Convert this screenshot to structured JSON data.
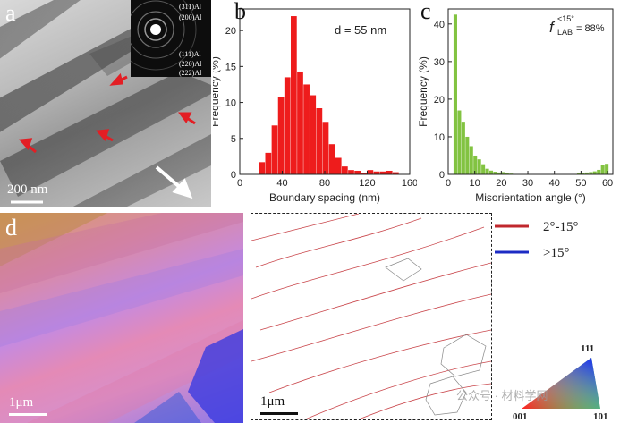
{
  "panel_labels": {
    "a": "a",
    "b": "b",
    "c": "c",
    "d": "d"
  },
  "tem": {
    "scale_bar": "200 nm",
    "saed_labels": [
      "(311)Al",
      "(200)Al",
      "(111)Al",
      "(220)Al",
      "(222)Al"
    ]
  },
  "chart_data": [
    {
      "type": "bar",
      "panel": "b",
      "xlabel": "Boundary spacing (nm)",
      "ylabel": "Frequency (%)",
      "annotation": "d = 55 nm",
      "xlim": [
        0,
        160
      ],
      "ylim": [
        0,
        23
      ],
      "xticks": [
        0,
        40,
        80,
        120,
        160
      ],
      "yticks": [
        0,
        5,
        10,
        15,
        20
      ],
      "bin_width": 6,
      "x": [
        21,
        27,
        33,
        39,
        45,
        51,
        57,
        63,
        69,
        75,
        81,
        87,
        93,
        99,
        105,
        111,
        117,
        123,
        129,
        135,
        141,
        147
      ],
      "values": [
        1.7,
        3.0,
        6.8,
        10.8,
        13.5,
        22.0,
        14.3,
        12.5,
        11.0,
        9.2,
        7.3,
        4.2,
        2.3,
        1.1,
        0.6,
        0.5,
        0.2,
        0.6,
        0.4,
        0.4,
        0.5,
        0.3
      ],
      "color": "#ee1c1c"
    },
    {
      "type": "bar",
      "panel": "c",
      "xlabel": "Misorientation angle (°)",
      "ylabel": "Frequency (%)",
      "annotation": {
        "symbol": "f",
        "superscript": "<15°",
        "subscript": "LAB",
        "value": " = 88%"
      },
      "xlim": [
        0,
        62
      ],
      "ylim": [
        0,
        44
      ],
      "xticks": [
        0,
        10,
        20,
        30,
        40,
        50,
        60
      ],
      "yticks": [
        0,
        10,
        20,
        30,
        40
      ],
      "bin_width": 1.5,
      "x": [
        2.75,
        4.25,
        5.75,
        7.25,
        8.75,
        10.25,
        11.75,
        13.25,
        14.75,
        16.25,
        17.75,
        19.25,
        20.75,
        22.25,
        23.75,
        49.25,
        50.75,
        52.25,
        53.75,
        55.25,
        56.75,
        58.25,
        59.75
      ],
      "values": [
        42.5,
        17.0,
        14.0,
        10.0,
        7.5,
        5.0,
        4.0,
        2.7,
        1.5,
        1.0,
        0.7,
        0.5,
        0.6,
        0.4,
        0.2,
        0.3,
        0.4,
        0.5,
        0.6,
        0.8,
        1.2,
        2.5,
        2.8
      ],
      "color": "#82c341"
    }
  ],
  "ebsd": {
    "scale_bar": "1μm"
  },
  "boundary_map": {
    "scale_bar": "1μm"
  },
  "legend": {
    "items": [
      {
        "label": "2°-15°",
        "color": "#c0272d"
      },
      {
        "label": ">15°",
        "color": "#1c2bc4"
      }
    ]
  },
  "ipf": {
    "labels": [
      "111",
      "001",
      "101"
    ]
  },
  "watermark": "公众号 · 材料学网"
}
